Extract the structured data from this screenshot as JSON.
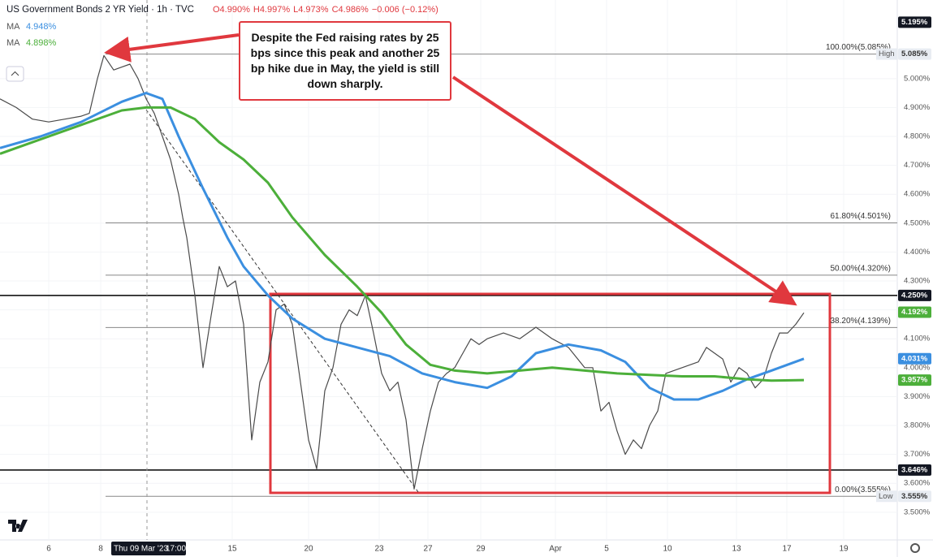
{
  "chart_data": {
    "type": "line",
    "title": "US Government Bonds 2 YR Yield · 1h · TVC",
    "ohlc": [
      "O4.990%",
      "H4.997%",
      "L4.973%",
      "C4.986%",
      "−0.006 (−0.12%)"
    ],
    "annotation": "Despite the Fed raising rates by 25 bps since this peak and another 25 bp hike due in May, the yield is still down sharply.",
    "xlim": [
      0,
      110.5
    ],
    "ylim": [
      3.404,
      5.272
    ],
    "yticks": [
      {
        "value": 3.5,
        "label": "3.500%"
      },
      {
        "value": 3.6,
        "label": "3.600%"
      },
      {
        "value": 3.7,
        "label": "3.700%"
      },
      {
        "value": 3.8,
        "label": "3.800%"
      },
      {
        "value": 3.9,
        "label": "3.900%"
      },
      {
        "value": 4.0,
        "label": "4.000%"
      },
      {
        "value": 4.1,
        "label": "4.100%"
      },
      {
        "value": 4.2,
        "label": "4.200%"
      },
      {
        "value": 4.3,
        "label": "4.300%"
      },
      {
        "value": 4.4,
        "label": "4.400%"
      },
      {
        "value": 4.5,
        "label": "4.500%"
      },
      {
        "value": 4.6,
        "label": "4.600%"
      },
      {
        "value": 4.7,
        "label": "4.700%"
      },
      {
        "value": 4.8,
        "label": "4.800%"
      },
      {
        "value": 4.9,
        "label": "4.900%"
      },
      {
        "value": 5.0,
        "label": "5.000%"
      }
    ],
    "xticks": [
      {
        "value": 6.0,
        "label": "6"
      },
      {
        "value": 12.4,
        "label": "8"
      },
      {
        "value": 28.6,
        "label": "15"
      },
      {
        "value": 38.0,
        "label": "20"
      },
      {
        "value": 46.7,
        "label": "23"
      },
      {
        "value": 52.7,
        "label": "27"
      },
      {
        "value": 59.2,
        "label": "29"
      },
      {
        "value": 68.4,
        "label": "Apr"
      },
      {
        "value": 74.7,
        "label": "5"
      },
      {
        "value": 82.2,
        "label": "10"
      },
      {
        "value": 90.7,
        "label": "13"
      },
      {
        "value": 96.9,
        "label": "17"
      },
      {
        "value": 103.9,
        "label": "19"
      }
    ],
    "crosshair": {
      "value": 18.1,
      "label": "Thu 09 Mar '23",
      "time": "17:00"
    },
    "series": [
      {
        "name": "US Government Bonds 2 YR Yield",
        "color": "#4a4a4a",
        "x": [
          0,
          2,
          4,
          6,
          8,
          10,
          11,
          12,
          12.8,
          14,
          15,
          16,
          17,
          18,
          19,
          20,
          21,
          22,
          22.5,
          23,
          24,
          25,
          26,
          27,
          28,
          29,
          30,
          31,
          32,
          33,
          34,
          35,
          36,
          37,
          38,
          39,
          40,
          41,
          42,
          43,
          44,
          45,
          46,
          47,
          48,
          49,
          50,
          51,
          52,
          53,
          54,
          55,
          56,
          57,
          58,
          59,
          60,
          62,
          64,
          66,
          68,
          70,
          72,
          73,
          74,
          75,
          76,
          77,
          78,
          79,
          80,
          81,
          82,
          84,
          86,
          87,
          88,
          89,
          90,
          91,
          92,
          93,
          94,
          95,
          96,
          97,
          98,
          99
        ],
        "values": [
          4.93,
          4.9,
          4.86,
          4.85,
          4.86,
          4.87,
          4.88,
          5.0,
          5.08,
          5.03,
          5.04,
          5.05,
          5.0,
          4.93,
          4.88,
          4.8,
          4.72,
          4.6,
          4.52,
          4.45,
          4.25,
          4.0,
          4.18,
          4.35,
          4.28,
          4.3,
          4.15,
          3.75,
          3.95,
          4.02,
          4.2,
          4.22,
          4.15,
          3.95,
          3.75,
          3.65,
          3.92,
          4.0,
          4.15,
          4.2,
          4.18,
          4.25,
          4.12,
          3.98,
          3.92,
          3.95,
          3.82,
          3.58,
          3.72,
          3.85,
          3.95,
          3.98,
          4.0,
          4.05,
          4.1,
          4.08,
          4.1,
          4.12,
          4.1,
          4.14,
          4.1,
          4.07,
          4.0,
          4.0,
          3.85,
          3.88,
          3.78,
          3.7,
          3.75,
          3.72,
          3.8,
          3.85,
          3.98,
          4.0,
          4.02,
          4.07,
          4.05,
          4.03,
          3.95,
          4.0,
          3.98,
          3.93,
          3.96,
          4.05,
          4.12,
          4.12,
          4.15,
          4.19
        ]
      },
      {
        "name": "MA",
        "color": "#3b8fe0",
        "legend_value": {
          "value": 4.948,
          "label": "4.948%"
        },
        "x": [
          0,
          5,
          10,
          15,
          18,
          20,
          22,
          25,
          28,
          30,
          33,
          36,
          40,
          44,
          48,
          50,
          52,
          56,
          60,
          63,
          66,
          70,
          74,
          77,
          80,
          83,
          86,
          89,
          92,
          95,
          99
        ],
        "values": [
          4.76,
          4.8,
          4.85,
          4.92,
          4.95,
          4.93,
          4.8,
          4.62,
          4.45,
          4.35,
          4.25,
          4.17,
          4.1,
          4.07,
          4.04,
          4.01,
          3.98,
          3.95,
          3.93,
          3.97,
          4.05,
          4.08,
          4.06,
          4.02,
          3.93,
          3.89,
          3.89,
          3.92,
          3.96,
          3.99,
          4.031
        ]
      },
      {
        "name": "MA",
        "color": "#4caf3a",
        "legend_value": {
          "value": 4.898,
          "label": "4.898%"
        },
        "x": [
          0,
          5,
          10,
          15,
          18,
          21,
          24,
          27,
          30,
          33,
          36,
          40,
          44,
          47,
          50,
          53,
          56,
          60,
          64,
          68,
          72,
          76,
          80,
          84,
          88,
          92,
          95,
          99
        ],
        "values": [
          4.74,
          4.79,
          4.84,
          4.89,
          4.9,
          4.9,
          4.86,
          4.78,
          4.72,
          4.64,
          4.52,
          4.39,
          4.28,
          4.19,
          4.08,
          4.01,
          3.99,
          3.98,
          3.99,
          4.0,
          3.99,
          3.98,
          3.975,
          3.97,
          3.97,
          3.96,
          3.955,
          3.957
        ]
      }
    ],
    "fib_levels": [
      {
        "value": 5.085,
        "label": "100.00%(5.085%)"
      },
      {
        "value": 4.501,
        "label": "61.80%(4.501%)"
      },
      {
        "value": 4.32,
        "label": "50.00%(4.320%)"
      },
      {
        "value": 4.139,
        "label": "38.20%(4.139%)"
      },
      {
        "value": 3.555,
        "label": "0.00%(3.555%)"
      }
    ],
    "levels": [
      {
        "value": 4.25,
        "color": "#000000"
      },
      {
        "value": 3.646,
        "color": "#000000"
      }
    ],
    "price_labels": [
      {
        "value": 5.195,
        "label": "5.195%",
        "color": "#131722"
      },
      {
        "value": 5.085,
        "label": "5.085%",
        "color": "#e8ecf2",
        "tag": "High"
      },
      {
        "value": 4.25,
        "label": "4.250%",
        "color": "#131722"
      },
      {
        "value": 4.192,
        "label": "4.192%",
        "color": "#4caf3a"
      },
      {
        "value": 4.031,
        "label": "4.031%",
        "color": "#3b8fe0"
      },
      {
        "value": 3.957,
        "label": "3.957%",
        "color": "#4caf3a"
      },
      {
        "value": 3.646,
        "label": "3.646%",
        "color": "#131722"
      },
      {
        "value": 3.555,
        "label": "3.555%",
        "color": "#e8ecf2",
        "tag": "Low"
      }
    ]
  }
}
